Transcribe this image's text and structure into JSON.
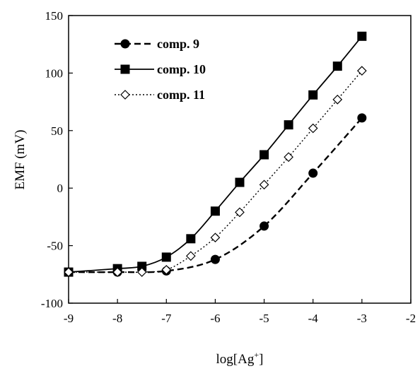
{
  "chart_data": {
    "type": "line",
    "xlabel": "log[Ag",
    "xlabel_sup": "+",
    "xlabel_end": "]",
    "ylabel": "EMF (mV)",
    "xlim": [
      -9,
      -2
    ],
    "ylim": [
      -100,
      150
    ],
    "x_ticks": [
      "-9",
      "-8",
      "-7",
      "-6",
      "-5",
      "-4",
      "-3",
      "-2"
    ],
    "y_ticks": [
      "-100",
      "-50",
      "0",
      "50",
      "100",
      "150"
    ],
    "grid": false,
    "legend_position": "top-left",
    "series": [
      {
        "name": "comp. 9",
        "marker": "filled-circle",
        "line_style": "dashed",
        "color": "#000000",
        "points": [
          [
            -9,
            -73
          ],
          [
            -8,
            -73
          ],
          [
            -7,
            -72
          ],
          [
            -6,
            -62
          ],
          [
            -5,
            -33
          ],
          [
            -4,
            13
          ],
          [
            -3,
            61
          ]
        ]
      },
      {
        "name": "comp. 10",
        "marker": "filled-square",
        "line_style": "solid",
        "color": "#000000",
        "points": [
          [
            -9,
            -73
          ],
          [
            -8,
            -70
          ],
          [
            -7.5,
            -68
          ],
          [
            -7,
            -60
          ],
          [
            -6.5,
            -44
          ],
          [
            -6,
            -20
          ],
          [
            -5.5,
            5
          ],
          [
            -5,
            29
          ],
          [
            -4.5,
            55
          ],
          [
            -4,
            81
          ],
          [
            -3.5,
            106
          ],
          [
            -3,
            132
          ]
        ]
      },
      {
        "name": "comp. 11",
        "marker": "open-diamond",
        "line_style": "dotted",
        "color": "#000000",
        "points": [
          [
            -9,
            -73
          ],
          [
            -8,
            -73
          ],
          [
            -7.5,
            -73
          ],
          [
            -7,
            -71
          ],
          [
            -6.5,
            -59
          ],
          [
            -6,
            -43
          ],
          [
            -5.5,
            -21
          ],
          [
            -5,
            3
          ],
          [
            -4.5,
            27
          ],
          [
            -4,
            52
          ],
          [
            -3.5,
            77
          ],
          [
            -3,
            102
          ]
        ]
      }
    ]
  }
}
